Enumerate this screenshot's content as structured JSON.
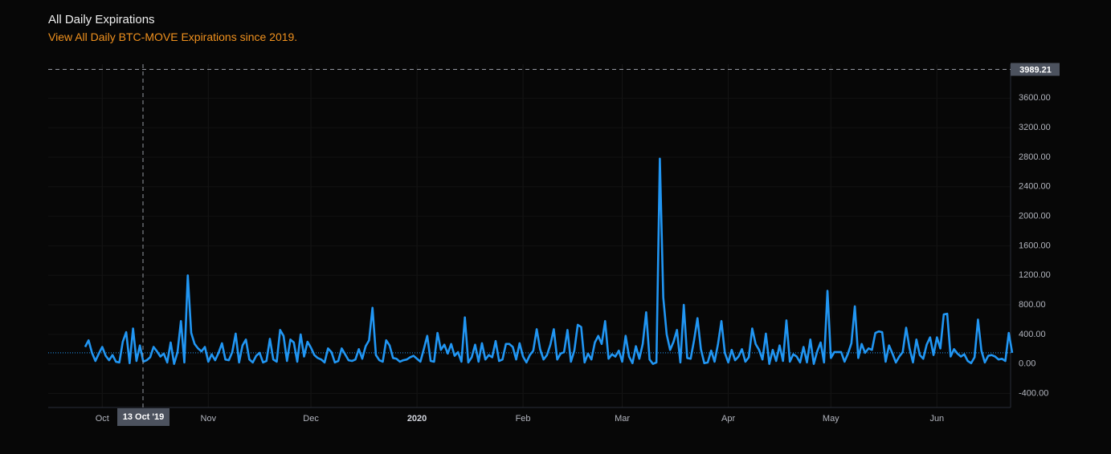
{
  "chart_data": {
    "type": "line",
    "title": "All Daily Expirations",
    "subtitle": "View All Daily BTC-MOVE Expirations since 2019.",
    "color": "#2196f3",
    "grid": true,
    "ylim": [
      -590,
      4060
    ],
    "yticks": [
      {
        "value": -400,
        "label": "-400.00"
      },
      {
        "value": 0,
        "label": "0.00"
      },
      {
        "value": 400,
        "label": "400.00"
      },
      {
        "value": 800,
        "label": "800.00"
      },
      {
        "value": 1200,
        "label": "1200.00"
      },
      {
        "value": 1600,
        "label": "1600.00"
      },
      {
        "value": 2000,
        "label": "2000.00"
      },
      {
        "value": 2400,
        "label": "2400.00"
      },
      {
        "value": 2800,
        "label": "2800.00"
      },
      {
        "value": 3200,
        "label": "3200.00"
      },
      {
        "value": 3600,
        "label": "3600.00"
      }
    ],
    "crosshair": {
      "x_label": "13 Oct '19",
      "y_value": 3989.21
    },
    "categories": [
      null,
      null,
      null,
      null,
      null,
      "Oct",
      null,
      null,
      null,
      null,
      null,
      null,
      null,
      null,
      null,
      null,
      null,
      null,
      null,
      null,
      null,
      null,
      null,
      null,
      null,
      null,
      null,
      null,
      null,
      null,
      null,
      null,
      null,
      null,
      null,
      null,
      "Nov",
      null,
      null,
      null,
      null,
      null,
      null,
      null,
      null,
      null,
      null,
      null,
      null,
      null,
      null,
      null,
      null,
      null,
      null,
      null,
      null,
      null,
      null,
      null,
      null,
      null,
      null,
      null,
      null,
      null,
      "Dec",
      null,
      null,
      null,
      null,
      null,
      null,
      null,
      null,
      null,
      null,
      null,
      null,
      null,
      null,
      null,
      null,
      null,
      null,
      null,
      null,
      null,
      null,
      null,
      null,
      null,
      null,
      null,
      null,
      null,
      null,
      "2020",
      null,
      null,
      null,
      null,
      null,
      null,
      null,
      null,
      null,
      null,
      null,
      null,
      null,
      null,
      null,
      null,
      null,
      null,
      null,
      null,
      null,
      null,
      null,
      null,
      null,
      null,
      null,
      null,
      null,
      null,
      "Feb",
      null,
      null,
      null,
      null,
      null,
      null,
      null,
      null,
      null,
      null,
      null,
      null,
      null,
      null,
      null,
      null,
      null,
      null,
      null,
      null,
      null,
      null,
      null,
      null,
      null,
      null,
      null,
      null,
      "Mar",
      null,
      null,
      null,
      null,
      null,
      null,
      null,
      null,
      null,
      null,
      null,
      null,
      null,
      null,
      null,
      null,
      null,
      null,
      null,
      null,
      null,
      null,
      null,
      null,
      null,
      null,
      null,
      null,
      null,
      null,
      "Apr",
      null,
      null,
      null,
      null,
      null,
      null,
      null,
      null,
      null,
      null,
      null,
      null,
      null,
      null,
      null,
      null,
      null,
      null,
      null,
      null,
      null,
      null,
      null,
      null,
      null,
      null,
      null,
      null,
      null,
      "May",
      null,
      null,
      null,
      null,
      null,
      null,
      null,
      null,
      null,
      null,
      null,
      null,
      null,
      null,
      null,
      null,
      null,
      null,
      null,
      null,
      null,
      null,
      null,
      null,
      null,
      null,
      null,
      null,
      null,
      null,
      "Jun",
      null,
      null,
      null,
      null,
      null,
      null,
      null,
      null,
      null,
      null,
      null,
      null,
      null,
      null,
      null,
      null,
      null,
      null,
      null,
      null,
      null,
      null
    ],
    "values": [
      230,
      320,
      150,
      40,
      140,
      230,
      110,
      50,
      120,
      30,
      20,
      300,
      430,
      10,
      480,
      40,
      250,
      30,
      50,
      90,
      230,
      170,
      100,
      140,
      20,
      290,
      0,
      160,
      580,
      20,
      1200,
      420,
      270,
      210,
      170,
      230,
      30,
      130,
      50,
      150,
      280,
      60,
      50,
      160,
      410,
      20,
      250,
      330,
      60,
      20,
      110,
      150,
      20,
      40,
      340,
      60,
      30,
      460,
      380,
      40,
      330,
      290,
      30,
      400,
      100,
      300,
      220,
      120,
      80,
      60,
      20,
      210,
      160,
      20,
      40,
      210,
      130,
      50,
      40,
      60,
      200,
      70,
      240,
      320,
      760,
      120,
      50,
      30,
      320,
      250,
      80,
      70,
      30,
      50,
      60,
      90,
      110,
      70,
      30,
      200,
      380,
      40,
      30,
      420,
      190,
      260,
      140,
      270,
      110,
      160,
      30,
      630,
      20,
      90,
      260,
      30,
      280,
      60,
      120,
      90,
      310,
      40,
      60,
      270,
      270,
      230,
      60,
      280,
      100,
      20,
      120,
      180,
      470,
      200,
      60,
      120,
      260,
      470,
      60,
      140,
      160,
      460,
      30,
      180,
      530,
      500,
      20,
      140,
      60,
      290,
      380,
      270,
      580,
      70,
      130,
      100,
      180,
      30,
      380,
      100,
      10,
      240,
      70,
      270,
      700,
      60,
      0,
      20,
      2780,
      900,
      400,
      190,
      300,
      460,
      20,
      800,
      80,
      70,
      320,
      620,
      200,
      10,
      20,
      180,
      30,
      270,
      580,
      150,
      20,
      190,
      50,
      100,
      200,
      30,
      90,
      480,
      270,
      190,
      60,
      410,
      0,
      190,
      40,
      250,
      40,
      590,
      30,
      130,
      100,
      20,
      230,
      20,
      330,
      0,
      170,
      290,
      20,
      990,
      80,
      160,
      160,
      160,
      30,
      140,
      280,
      780,
      80,
      270,
      150,
      210,
      190,
      420,
      440,
      430,
      30,
      250,
      140,
      20,
      100,
      160,
      490,
      210,
      20,
      330,
      120,
      70,
      260,
      360,
      120,
      360,
      210,
      670,
      680,
      100,
      200,
      140,
      100,
      130,
      40,
      10,
      90,
      600,
      180,
      20,
      110,
      120,
      100,
      60,
      70,
      40,
      420,
      150
    ]
  }
}
